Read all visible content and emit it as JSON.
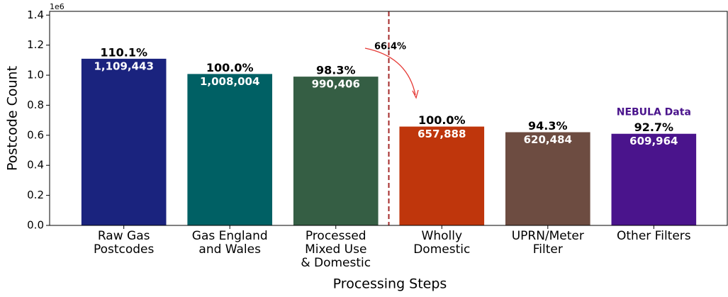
{
  "chart_data": {
    "type": "bar",
    "xlabel": "Processing Steps",
    "ylabel": "Postcode Count",
    "y_offset_label": "1e6",
    "categories": [
      "Raw Gas\nPostcodes",
      "Gas England\nand Wales",
      "Processed\nMixed Use\n& Domestic",
      "Wholly\nDomestic",
      "UPRN/Meter\nFilter",
      "Other Filters"
    ],
    "values": [
      1109443,
      1008004,
      990406,
      657888,
      620484,
      609964
    ],
    "value_labels": [
      "1,109,443",
      "1,008,004",
      "990,406",
      "657,888",
      "620,484",
      "609,964"
    ],
    "percent_labels": [
      "110.1%",
      "100.0%",
      "98.3%",
      "100.0%",
      "94.3%",
      "92.7%"
    ],
    "colors": [
      "#1a237e",
      "#006064",
      "#355e44",
      "#bf360c",
      "#6d4c41",
      "#4a148c"
    ],
    "annotations": {
      "split": "66.4%",
      "final": "NEBULA Data"
    },
    "ylim": [
      0,
      1425000
    ],
    "yticks": [
      {
        "value": 0,
        "label": "0.0"
      },
      {
        "value": 200000,
        "label": "0.2"
      },
      {
        "value": 400000,
        "label": "0.4"
      },
      {
        "value": 600000,
        "label": "0.6"
      },
      {
        "value": 800000,
        "label": "0.8"
      },
      {
        "value": 1000000,
        "label": "1.0"
      },
      {
        "value": 1200000,
        "label": "1.2"
      },
      {
        "value": 1400000,
        "label": "1.4"
      }
    ]
  }
}
